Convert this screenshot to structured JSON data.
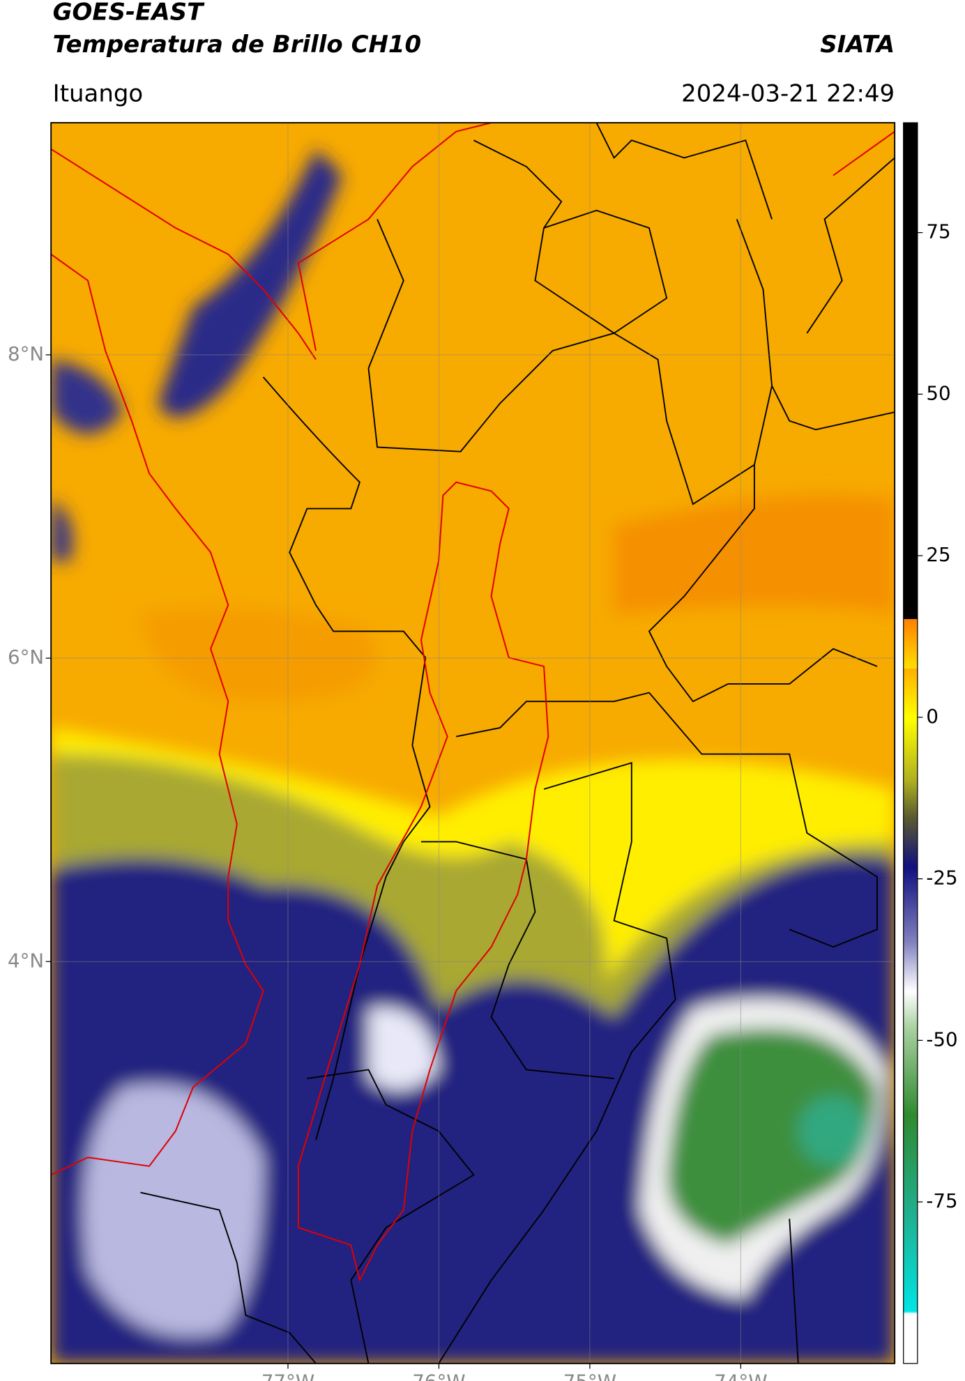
{
  "header": {
    "title": "GOES-EAST",
    "subtitle": "Temperatura de Brillo CH10",
    "brand": "SIATA",
    "location": "Ituango",
    "datetime": "2024-03-21 22:49"
  },
  "map": {
    "lonlim": [
      -78.57,
      -72.98
    ],
    "latlim": [
      1.35,
      9.53
    ],
    "lonticks": [
      {
        "value": -77,
        "label": "77°W"
      },
      {
        "value": -76,
        "label": "76°W"
      },
      {
        "value": -75,
        "label": "75°W"
      },
      {
        "value": -74,
        "label": "74°W"
      }
    ],
    "latticks": [
      {
        "value": 8,
        "label": "8°N"
      },
      {
        "value": 6,
        "label": "6°N"
      },
      {
        "value": 4,
        "label": "4°N"
      }
    ],
    "grid": true
  },
  "colorbar": {
    "lim": [
      -100,
      92
    ],
    "ticks": [
      75,
      50,
      25,
      0,
      -25,
      -50,
      -75
    ]
  }
}
